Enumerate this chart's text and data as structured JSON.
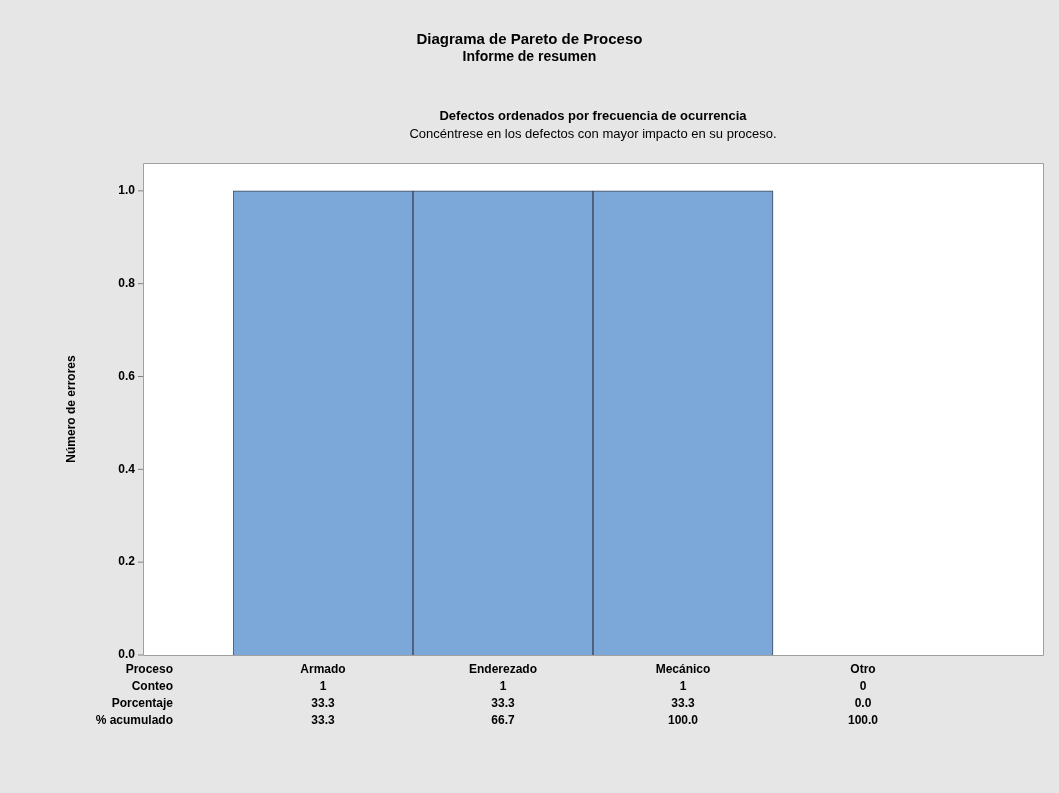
{
  "chart_data": {
    "type": "bar",
    "title": "Diagrama de Pareto de Proceso",
    "subtitle": "Informe de resumen",
    "xlabel": "Proceso",
    "ylabel": "Número de errores",
    "categories": [
      "Armado",
      "Enderezado",
      "Mecánico",
      "Otro"
    ],
    "values": [
      1,
      1,
      1,
      0
    ],
    "color": "#7ba7d9",
    "ylim": [
      0,
      1.06
    ],
    "yticks": [
      {
        "value": 0,
        "label": "0.0"
      },
      {
        "value": 0.2,
        "label": "0.2"
      },
      {
        "value": 0.4,
        "label": "0.4"
      },
      {
        "value": 0.6,
        "label": "0.6"
      },
      {
        "value": 0.8,
        "label": "0.8"
      },
      {
        "value": 1,
        "label": "1.0"
      }
    ],
    "data_labels": true,
    "grid": false,
    "legend": false,
    "annotations": [
      "Defectos ordenados por frecuencia de ocurrencia",
      "Concéntrese en los defectos con mayor impacto en su proceso.",
      "Conteo",
      "Porcentaje",
      "33.3",
      "33.3",
      "33.3",
      "0.0",
      "% acumulado",
      "33.3",
      "66.7",
      "100.0",
      "100.0"
    ]
  }
}
